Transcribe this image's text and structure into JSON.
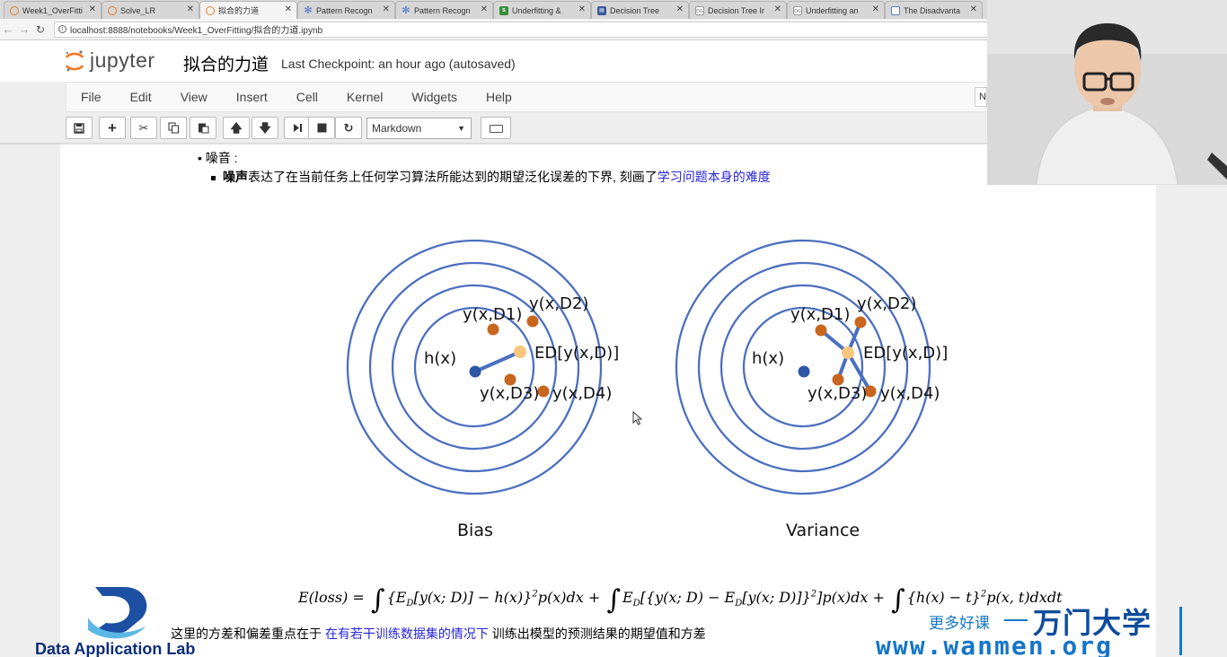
{
  "browser": {
    "tabs": [
      {
        "label": "Week1_OverFitti",
        "icon": "jupyter-icon",
        "active": false
      },
      {
        "label": "Solve_LR",
        "icon": "jupyter-icon",
        "active": false
      },
      {
        "label": "拟合的力道",
        "icon": "jupyter-icon",
        "active": true
      },
      {
        "label": "Pattern Recogn",
        "icon": "puzzle-icon",
        "active": false
      },
      {
        "label": "Pattern Recogn",
        "icon": "puzzle-icon",
        "active": false
      },
      {
        "label": "Underfitting &",
        "icon": "stackoverflow-icon",
        "active": false
      },
      {
        "label": "Decision Tree",
        "icon": "site-icon",
        "active": false
      },
      {
        "label": "Decision Tree Ir",
        "icon": "dg-icon",
        "active": false
      },
      {
        "label": "Underfitting an",
        "icon": "dg-icon",
        "active": false
      },
      {
        "label": "The Disadvanta",
        "icon": "page-icon",
        "active": false
      }
    ],
    "url": "localhost:8888/notebooks/Week1_OverFitting/拟合的力道.ipynb"
  },
  "jupyter": {
    "logo_text": "jupyter",
    "notebook_name": "拟合的力道",
    "checkpoint": "Last Checkpoint: an hour ago (autosaved)",
    "menu": [
      "File",
      "Edit",
      "View",
      "Insert",
      "Cell",
      "Kernel",
      "Widgets",
      "Help"
    ],
    "kernel_indicator": "N",
    "cell_type": "Markdown"
  },
  "content": {
    "bullet_noise": "噪音 :",
    "noise_bold": "噪声",
    "noise_text": "表达了在当前任务上任何学习算法所能达到的期望泛化误差的下界, 刻画了",
    "noise_link": "学习问题本身的难度",
    "note_prefix": "这里的方差和偏差重点在于 ",
    "note_link": "在有若干训练数据集的情况下",
    "note_suffix": " 训练出模型的预测结果的期望值和方差"
  },
  "figure": {
    "bias_title": "Bias",
    "variance_title": "Variance",
    "hx": "h(x)",
    "ed": "ED[y(x,D)]",
    "d1": "y(x,D1)",
    "d2": "y(x,D2)",
    "d3": "y(x,D3)",
    "d4": "y(x,D4)",
    "colors": {
      "ring": "#4c6fbf",
      "hx": "#2d57a8",
      "samples": "#c8651e",
      "mean": "#f7c77d"
    }
  },
  "formula": {
    "lhs": "E(loss) =",
    "t1": "{E",
    "t1_sub": "D",
    "t1b": "[y(x; D)] − h(x)}",
    "t1_sup": "2",
    "t1c": "p(x)dx +",
    "t2": "E",
    "t2_sub": "D",
    "t2b": "[{y(x; D) − E",
    "t2_sub2": "D",
    "t2c": "[y(x; D)]}",
    "t2_sup": "2",
    "t2d": "]p(x)dx +",
    "t3": "{h(x) − t}",
    "t3_sup": "2",
    "t3b": "p(x, t)dxdt"
  },
  "watermark": {
    "dal": "Data Application Lab",
    "more": "更多好课",
    "brand": "万门大学",
    "url": "www.wanmen.org"
  }
}
